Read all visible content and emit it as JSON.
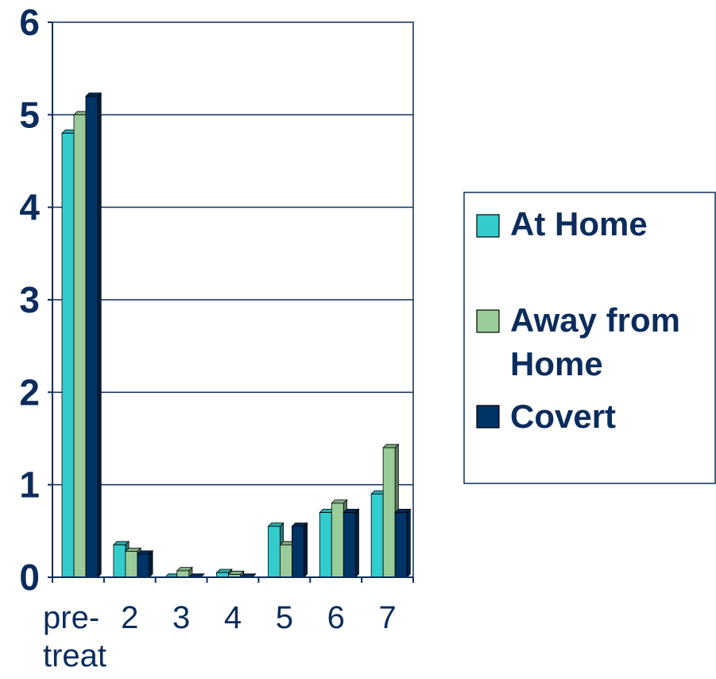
{
  "chart_data": {
    "type": "bar",
    "categories": [
      [
        "pre-",
        "treat"
      ],
      [
        "2"
      ],
      [
        "3"
      ],
      [
        "4"
      ],
      [
        "5"
      ],
      [
        "6"
      ],
      [
        "7"
      ]
    ],
    "series": [
      {
        "name": "At Home",
        "values": [
          4.8,
          0.35,
          0.0,
          0.05,
          0.55,
          0.7,
          0.9
        ],
        "color": "#33cccc"
      },
      {
        "name": "Away from Home",
        "values": [
          5.0,
          0.28,
          0.07,
          0.03,
          0.35,
          0.8,
          1.4
        ],
        "color": "#99cc99"
      },
      {
        "name": "Covert",
        "values": [
          5.2,
          0.25,
          0.0,
          0.0,
          0.55,
          0.7,
          0.7
        ],
        "color": "#003366"
      }
    ],
    "ylim": [
      0,
      6
    ],
    "yticks": [
      0,
      1,
      2,
      3,
      4,
      5,
      6
    ],
    "grid": true,
    "legend": "right",
    "legend_labels": [
      [
        "At Home"
      ],
      [
        "Away from",
        "Home"
      ],
      [
        "Covert"
      ]
    ],
    "axis_color": "#0b2c5c"
  }
}
